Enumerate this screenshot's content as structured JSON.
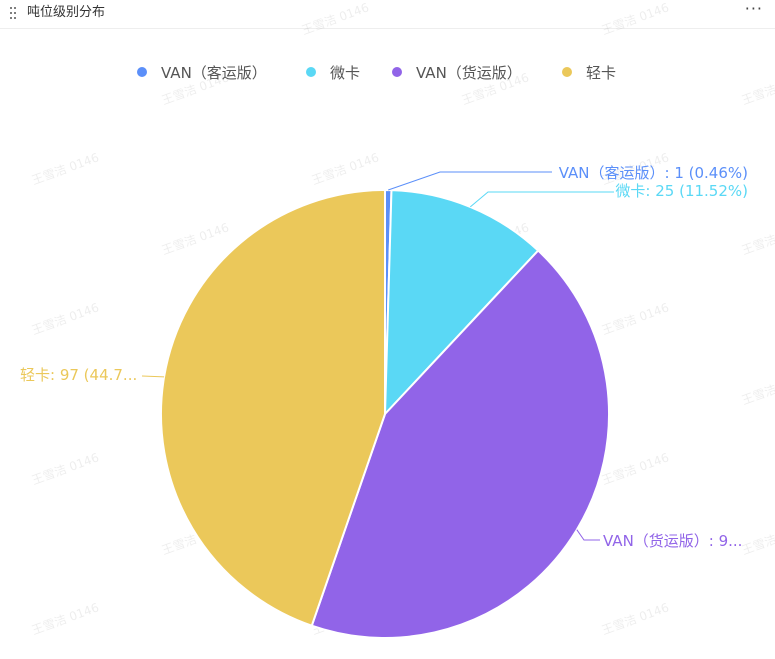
{
  "header": {
    "title": "吨位级别分布",
    "more_label": "···"
  },
  "watermark_text": "王雪洁 0146",
  "chart_data": {
    "type": "pie",
    "title": "吨位级别分布",
    "legend_position": "top-center",
    "slices": [
      {
        "name": "VAN（客运版）",
        "value": 1,
        "percent": "0.46%",
        "color": "#5B8FF9",
        "label_text": "VAN（客运版）: 1 (0.46%)",
        "label_color": "#5B8FF9"
      },
      {
        "name": "微卡",
        "value": 25,
        "percent": "11.52%",
        "color": "#5AD8F5",
        "label_text": "微卡: 25 (11.52%)",
        "label_color": "#5AD8F5"
      },
      {
        "name": "VAN（货运版）",
        "value": 94,
        "percent": "43.32%",
        "color": "#9164E8",
        "label_text": "VAN（货运版）: 9...",
        "label_color": "#9164E8"
      },
      {
        "name": "轻卡",
        "value": 97,
        "percent": "44.70%",
        "color": "#EBC85A",
        "label_text": "轻卡: 97 (44.7...",
        "label_color": "#EBC85A"
      }
    ]
  }
}
